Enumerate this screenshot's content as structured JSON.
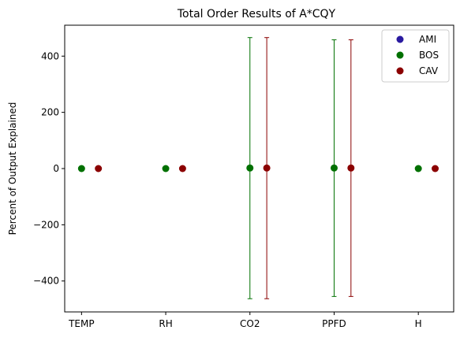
{
  "chart_data": {
    "type": "scatter",
    "title": "Total Order Results of A*CQY",
    "xlabel": "",
    "ylabel": "Percent of Output Explained",
    "categories": [
      "TEMP",
      "RH",
      "CO2",
      "PPFD",
      "H"
    ],
    "ylim": [
      -510,
      510
    ],
    "yticks": [
      -400,
      -200,
      0,
      200,
      400
    ],
    "grid": false,
    "legend_position": "top-right",
    "series": [
      {
        "name": "AMI",
        "color": "#2a1aa0",
        "offset": -0.2,
        "values": [
          null,
          null,
          null,
          null,
          null
        ],
        "err_low": [
          null,
          null,
          null,
          null,
          null
        ],
        "err_high": [
          null,
          null,
          null,
          null,
          null
        ]
      },
      {
        "name": "BOS",
        "color": "#007000",
        "offset": 0,
        "values": [
          0,
          0,
          2,
          2,
          0
        ],
        "err_low": [
          0,
          0,
          -463,
          -455,
          0
        ],
        "err_high": [
          0,
          0,
          466,
          458,
          0
        ]
      },
      {
        "name": "CAV",
        "color": "#8b0000",
        "offset": 0.2,
        "values": [
          0,
          0,
          2,
          2,
          0
        ],
        "err_low": [
          0,
          0,
          -463,
          -455,
          0
        ],
        "err_high": [
          0,
          0,
          466,
          458,
          0
        ]
      }
    ]
  }
}
